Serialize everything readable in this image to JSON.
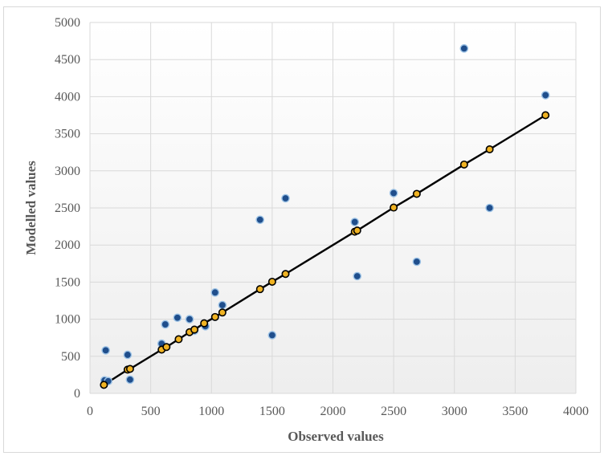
{
  "chart_data": {
    "type": "scatter",
    "title": "",
    "xlabel": "Observed values",
    "ylabel": "Modelled values",
    "xlim": [
      0,
      4000
    ],
    "ylim": [
      0,
      5000
    ],
    "xticks": [
      0,
      500,
      1000,
      1500,
      2000,
      2500,
      3000,
      3500,
      4000
    ],
    "yticks": [
      0,
      500,
      1000,
      1500,
      2000,
      2500,
      3000,
      3500,
      4000,
      4500,
      5000
    ],
    "grid": true,
    "legend": "none",
    "colors": {
      "observed_point": "#1f4e8c",
      "fit_point": "#f0b323",
      "fit_line": "#000000",
      "grid": "#d9d9d9"
    },
    "series": [
      {
        "marker": "blue-dot",
        "points": [
          [
            130,
            580
          ],
          [
            120,
            175
          ],
          [
            150,
            165
          ],
          [
            310,
            520
          ],
          [
            330,
            185
          ],
          [
            590,
            670
          ],
          [
            620,
            930
          ],
          [
            720,
            1020
          ],
          [
            820,
            1000
          ],
          [
            860,
            845
          ],
          [
            950,
            905
          ],
          [
            1030,
            1360
          ],
          [
            1090,
            1190
          ],
          [
            1400,
            2340
          ],
          [
            1500,
            785
          ],
          [
            1610,
            2630
          ],
          [
            2180,
            2310
          ],
          [
            2200,
            1580
          ],
          [
            2500,
            2700
          ],
          [
            2690,
            1775
          ],
          [
            3080,
            4650
          ],
          [
            3290,
            2500
          ],
          [
            3750,
            4020
          ]
        ]
      },
      {
        "marker": "orange-dot-with-line",
        "points": [
          [
            115,
            115
          ],
          [
            310,
            320
          ],
          [
            330,
            330
          ],
          [
            590,
            590
          ],
          [
            630,
            625
          ],
          [
            730,
            730
          ],
          [
            820,
            825
          ],
          [
            860,
            860
          ],
          [
            940,
            945
          ],
          [
            1030,
            1030
          ],
          [
            1090,
            1090
          ],
          [
            1400,
            1405
          ],
          [
            1500,
            1505
          ],
          [
            1610,
            1610
          ],
          [
            2180,
            2180
          ],
          [
            2200,
            2195
          ],
          [
            2500,
            2505
          ],
          [
            2690,
            2690
          ],
          [
            3080,
            3085
          ],
          [
            3290,
            3290
          ],
          [
            3750,
            3750
          ]
        ]
      }
    ]
  }
}
